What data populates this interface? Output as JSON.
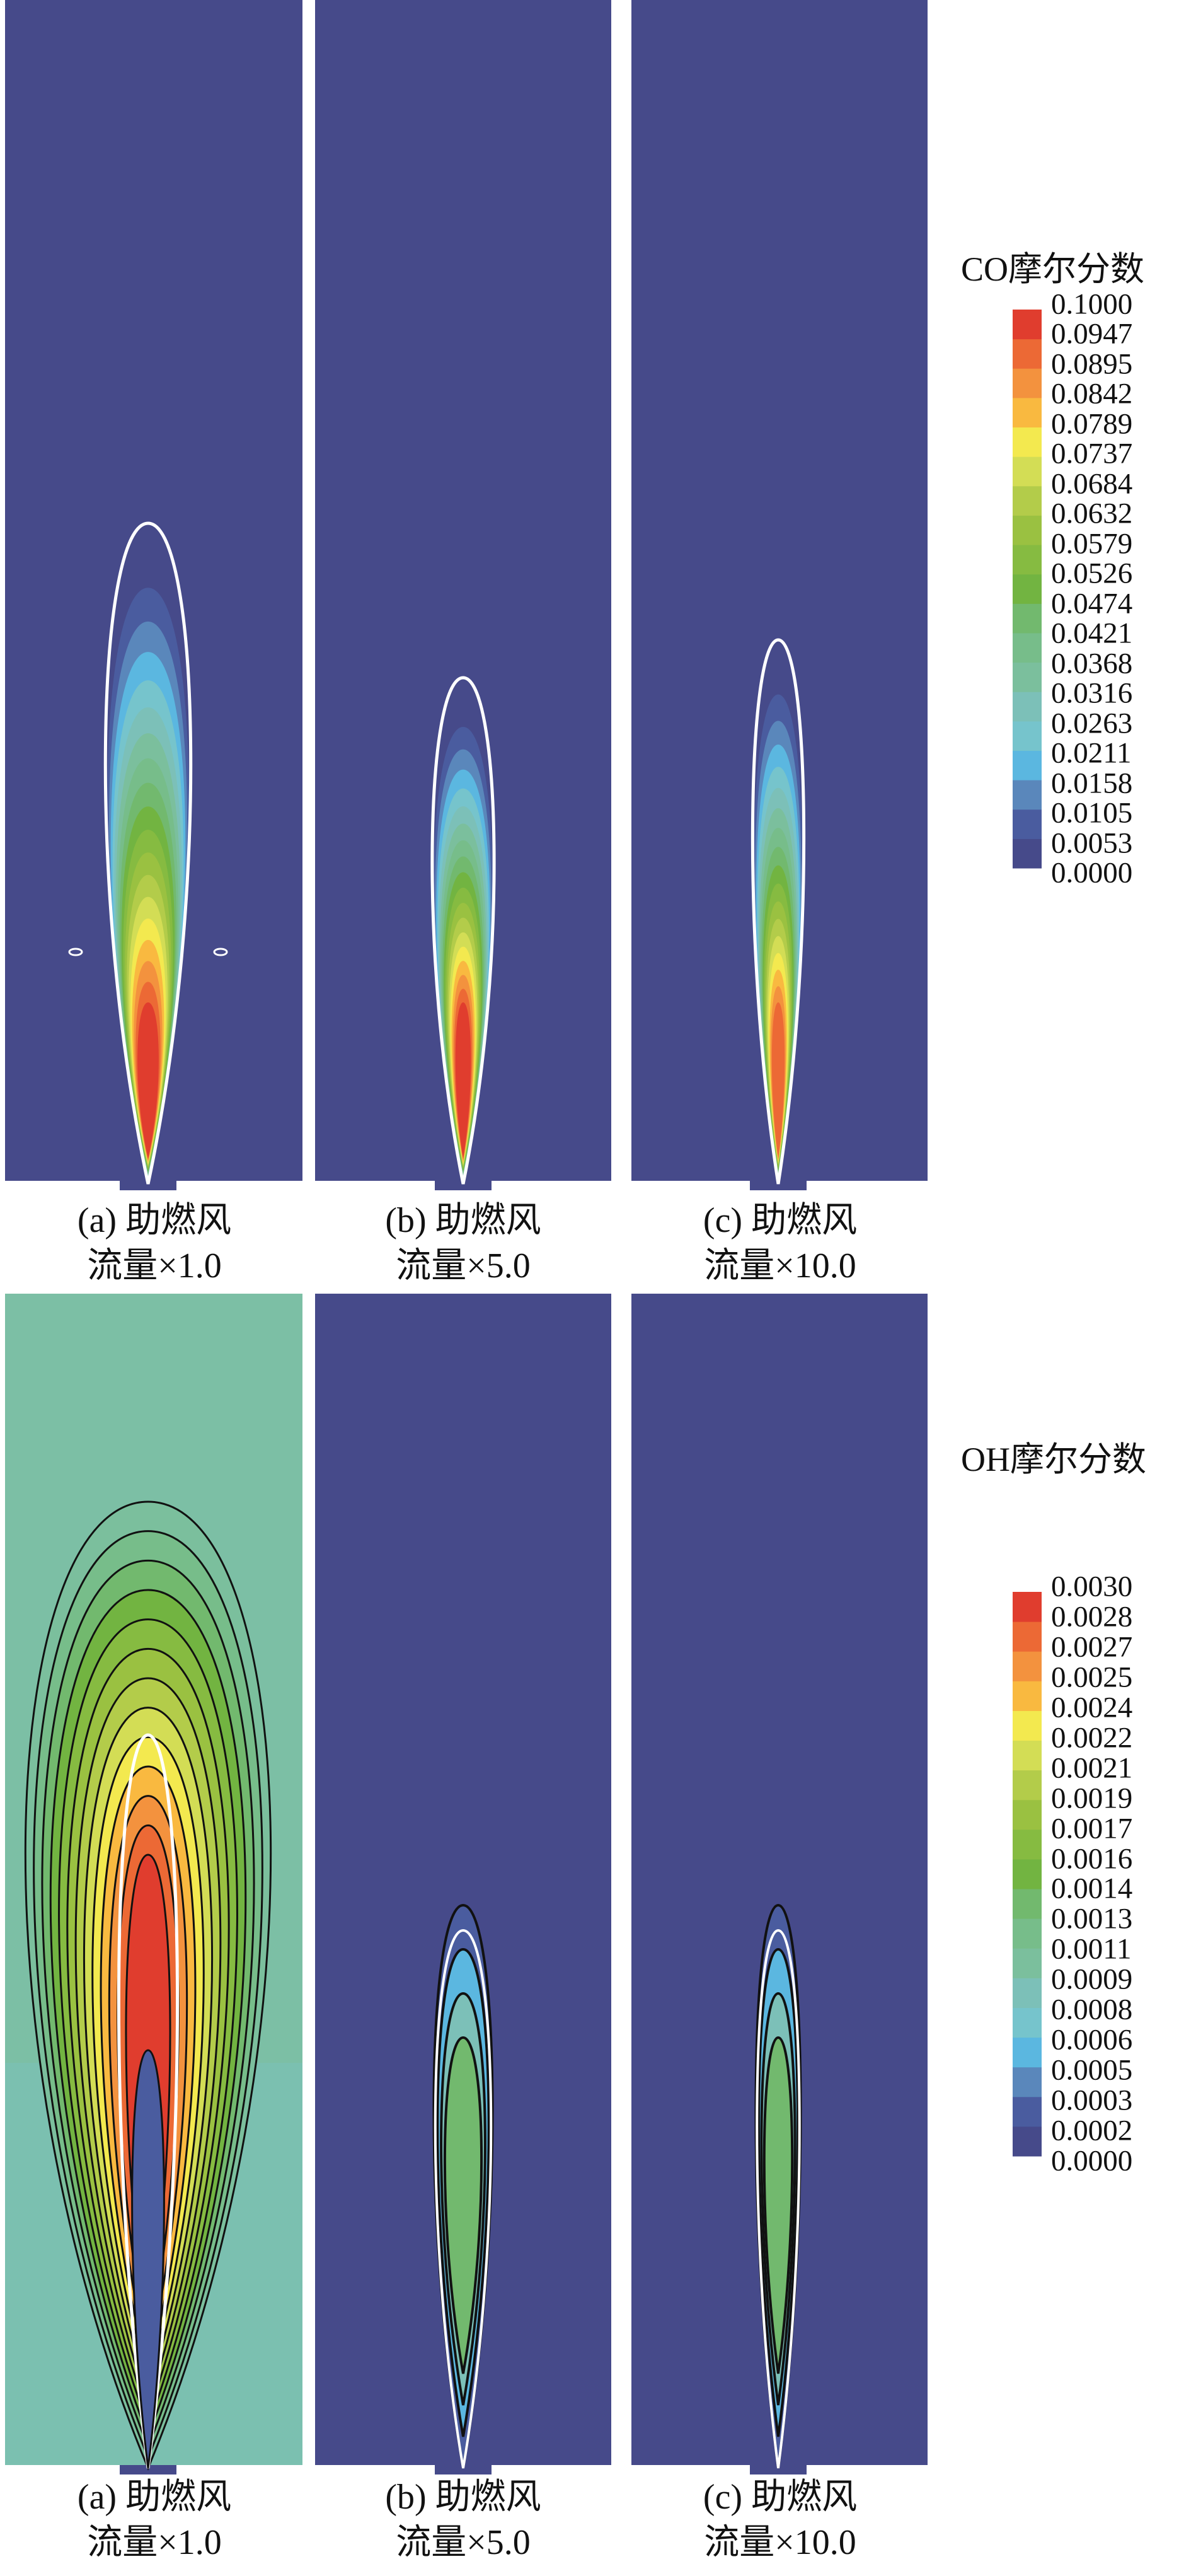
{
  "chart_data": [
    {
      "type": "heatmap",
      "title": "CO摩尔分数",
      "panels": [
        {
          "caption_line1": "(a) 助燃风",
          "caption_line2": "流量×1.0",
          "flow_multiplier": 1.0
        },
        {
          "caption_line1": "(b) 助燃风",
          "caption_line2": "流量×5.0",
          "flow_multiplier": 5.0
        },
        {
          "caption_line1": "(c) 助燃风",
          "caption_line2": "流量×10.0",
          "flow_multiplier": 10.0
        }
      ],
      "legend_title": "CO摩尔分数",
      "legend_ticks": [
        "0.1000",
        "0.0947",
        "0.0895",
        "0.0842",
        "0.0789",
        "0.0737",
        "0.0684",
        "0.0632",
        "0.0579",
        "0.0526",
        "0.0474",
        "0.0421",
        "0.0368",
        "0.0316",
        "0.0263",
        "0.0211",
        "0.0158",
        "0.0105",
        "0.0053",
        "0.0000"
      ],
      "range": [
        0,
        0.1
      ],
      "legend_placement": "right"
    },
    {
      "type": "heatmap",
      "title": "OH摩尔分数",
      "panels": [
        {
          "caption_line1": "(a) 助燃风",
          "caption_line2": "流量×1.0",
          "flow_multiplier": 1.0
        },
        {
          "caption_line1": "(b) 助燃风",
          "caption_line2": "流量×5.0",
          "flow_multiplier": 5.0
        },
        {
          "caption_line1": "(c) 助燃风",
          "caption_line2": "流量×10.0",
          "flow_multiplier": 10.0
        }
      ],
      "legend_title": "OH摩尔分数",
      "legend_ticks": [
        "0.0030",
        "0.0028",
        "0.0027",
        "0.0025",
        "0.0024",
        "0.0022",
        "0.0021",
        "0.0019",
        "0.0017",
        "0.0016",
        "0.0014",
        "0.0013",
        "0.0011",
        "0.0009",
        "0.0008",
        "0.0006",
        "0.0005",
        "0.0003",
        "0.0002",
        "0.0000"
      ],
      "range": [
        0,
        0.003
      ],
      "legend_placement": "right"
    }
  ],
  "colormap": [
    "#464a8a",
    "#4a5c9f",
    "#5a87bb",
    "#5bb7e0",
    "#76c4cc",
    "#7cc0b8",
    "#7bbf9d",
    "#77bd8a",
    "#72b96e",
    "#72b441",
    "#86bb41",
    "#9ac141",
    "#b3cc4a",
    "#d3dd55",
    "#f3e94f",
    "#f9b940",
    "#f3923e",
    "#ec6935",
    "#e03d2e"
  ]
}
